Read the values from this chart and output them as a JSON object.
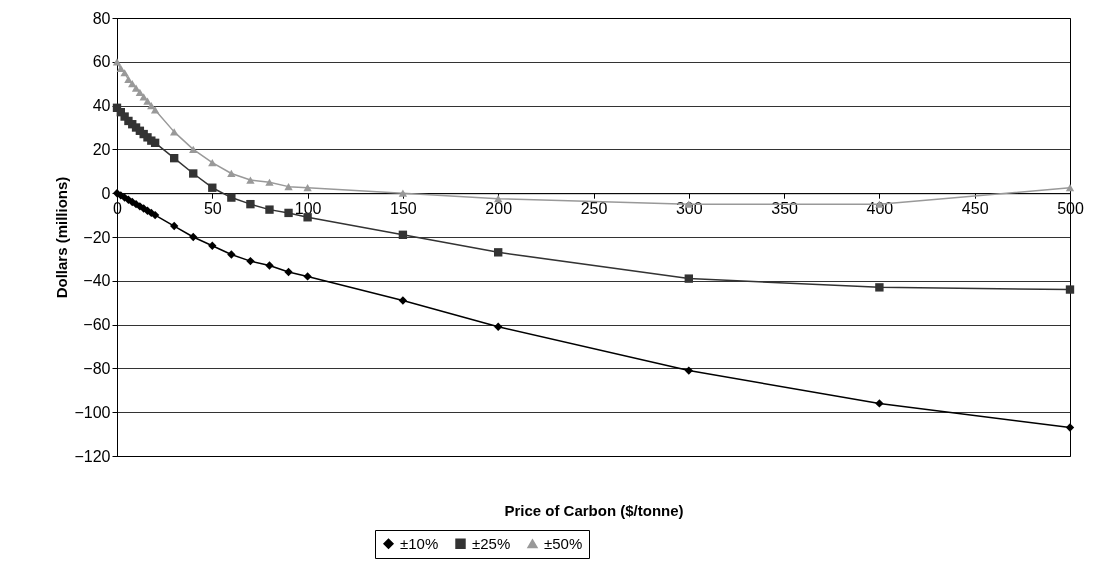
{
  "chart_data": {
    "type": "line",
    "xlabel": "Price of Carbon ($/tonne)",
    "ylabel": "Dollars (millions)",
    "x": [
      0,
      2,
      4,
      6,
      8,
      10,
      12,
      14,
      16,
      18,
      20,
      30,
      40,
      50,
      60,
      70,
      80,
      90,
      100,
      150,
      200,
      300,
      400,
      500
    ],
    "series": [
      {
        "name": "±10%",
        "color": "#000000",
        "marker": "diamond",
        "values": [
          0,
          -1,
          -2,
          -3,
          -4,
          -5,
          -6,
          -7,
          -8,
          -9,
          -10,
          -15,
          -20,
          -24,
          -28,
          -31,
          -33,
          -36,
          -38,
          -49,
          -61,
          -81,
          -96,
          -107
        ]
      },
      {
        "name": "±25%",
        "color": "#333333",
        "marker": "square",
        "values": [
          39,
          37,
          35,
          33,
          31.5,
          30,
          28.5,
          27,
          25.5,
          24,
          23,
          16,
          9,
          2.5,
          -2,
          -5,
          -7.5,
          -9,
          -11,
          -19,
          -27,
          -39,
          -43,
          -44
        ]
      },
      {
        "name": "±50%",
        "color": "#999999",
        "marker": "triangle",
        "values": [
          60,
          57,
          55,
          52,
          50,
          48,
          46,
          44,
          42,
          40,
          38,
          28,
          20,
          14,
          9,
          6,
          5,
          3,
          2.5,
          0,
          -2.5,
          -5,
          -5,
          2.5
        ]
      }
    ],
    "xlim": [
      0,
      500
    ],
    "xticks": [
      0,
      50,
      100,
      150,
      200,
      250,
      300,
      350,
      400,
      450,
      500
    ],
    "ylim": [
      -120,
      80
    ],
    "yticks": [
      -120,
      -100,
      -80,
      -60,
      -40,
      -20,
      0,
      20,
      40,
      60,
      80
    ],
    "grid": "y",
    "legend": "bottom"
  }
}
